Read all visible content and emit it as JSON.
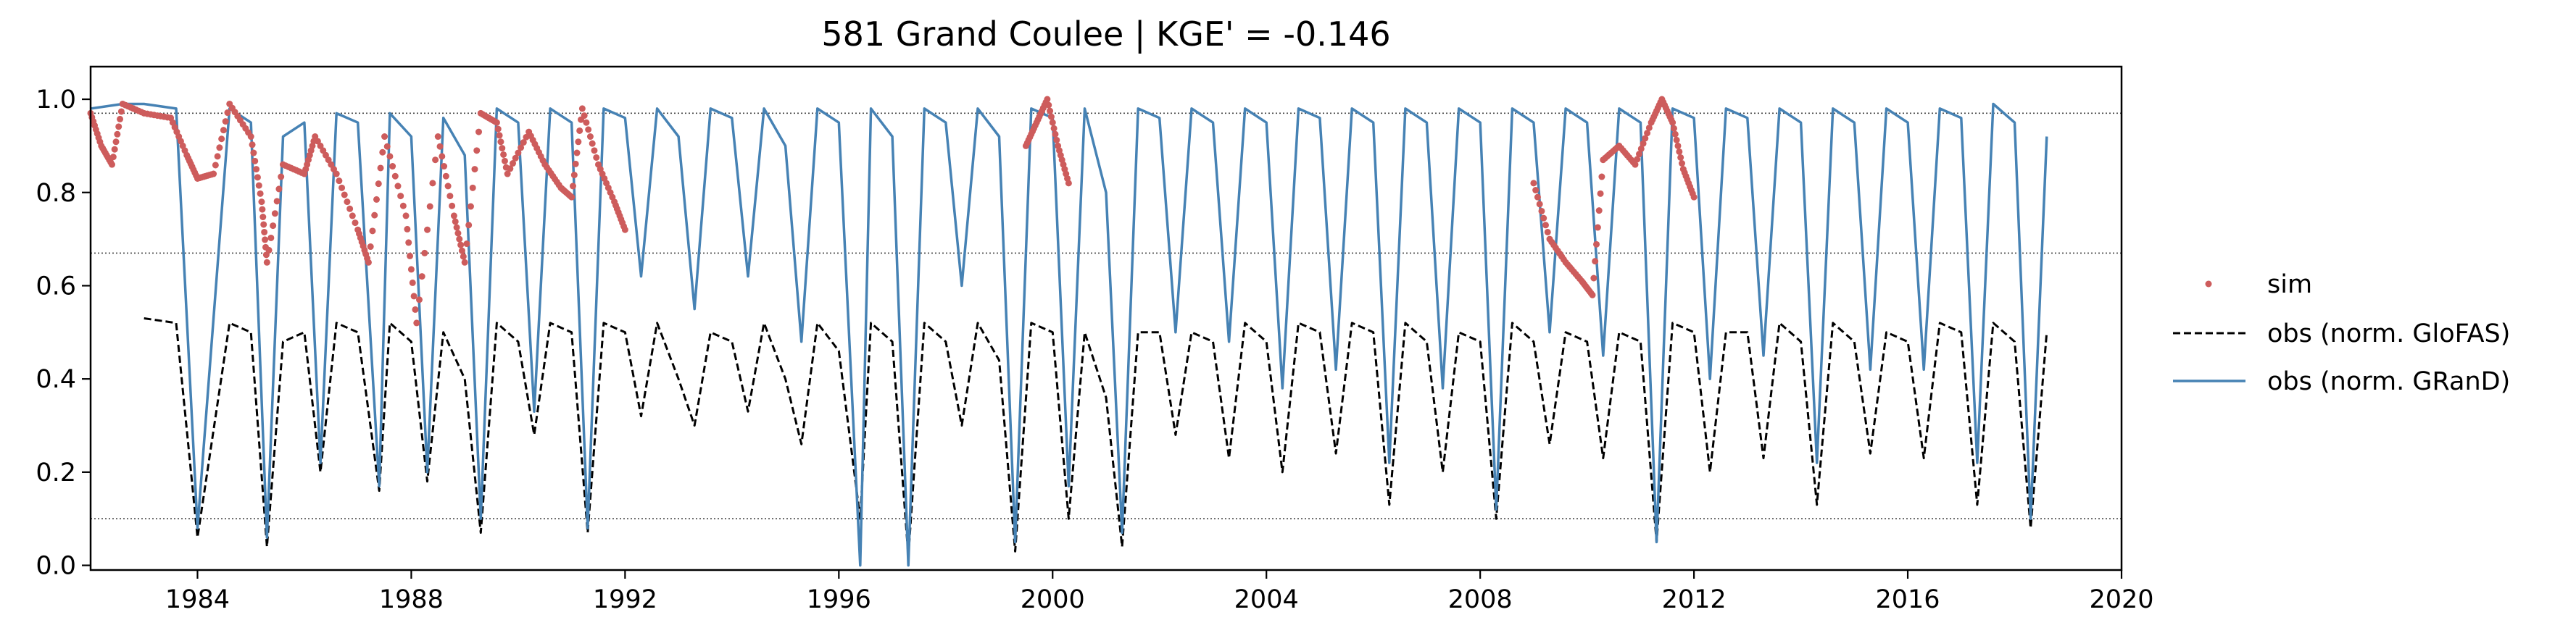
{
  "chart_data": {
    "type": "line",
    "title": "581  Grand Coulee | KGE' = -0.146",
    "xlabel": "",
    "ylabel": "",
    "xlim": [
      1982.0,
      2020.0
    ],
    "ylim": [
      -0.01,
      1.07
    ],
    "x_ticks": [
      1984,
      1988,
      1992,
      1996,
      2000,
      2004,
      2008,
      2012,
      2016,
      2020
    ],
    "x_tick_labels": [
      "1984",
      "1988",
      "1992",
      "1996",
      "2000",
      "2004",
      "2008",
      "2012",
      "2016",
      "2020"
    ],
    "y_ticks": [
      0.0,
      0.2,
      0.4,
      0.6,
      0.8,
      1.0
    ],
    "y_tick_labels": [
      "0.0",
      "0.2",
      "0.4",
      "0.6",
      "0.8",
      "1.0"
    ],
    "reference_lines": [
      0.1,
      0.67,
      0.97
    ],
    "legend": {
      "placement": "right, outside",
      "entries": [
        "sim",
        "obs (norm. GloFAS)",
        "obs (norm. GRanD)"
      ]
    },
    "series": [
      {
        "name": "sim",
        "style": "points",
        "color": "#cd5c5c",
        "segments": [
          [
            [
              1982.0,
              0.97
            ],
            [
              1982.2,
              0.9
            ],
            [
              1982.4,
              0.86
            ],
            [
              1982.6,
              0.99
            ],
            [
              1983.0,
              0.97
            ],
            [
              1983.5,
              0.96
            ],
            [
              1983.8,
              0.88
            ],
            [
              1984.0,
              0.83
            ],
            [
              1984.3,
              0.84
            ],
            [
              1984.6,
              0.99
            ],
            [
              1985.0,
              0.92
            ],
            [
              1985.2,
              0.78
            ],
            [
              1985.3,
              0.65
            ],
            [
              1985.6,
              0.86
            ],
            [
              1986.0,
              0.84
            ],
            [
              1986.2,
              0.92
            ],
            [
              1986.6,
              0.84
            ],
            [
              1987.0,
              0.72
            ],
            [
              1987.2,
              0.65
            ],
            [
              1987.5,
              0.92
            ],
            [
              1987.9,
              0.75
            ],
            [
              1988.1,
              0.52
            ],
            [
              1988.5,
              0.92
            ],
            [
              1988.8,
              0.75
            ],
            [
              1989.0,
              0.65
            ],
            [
              1989.3,
              0.97
            ],
            [
              1989.6,
              0.95
            ],
            [
              1989.8,
              0.84
            ],
            [
              1990.2,
              0.93
            ],
            [
              1990.5,
              0.86
            ],
            [
              1990.8,
              0.81
            ],
            [
              1991.0,
              0.79
            ],
            [
              1991.2,
              0.98
            ],
            [
              1991.5,
              0.86
            ],
            [
              1991.8,
              0.78
            ],
            [
              1992.0,
              0.72
            ]
          ],
          [
            [
              1999.5,
              0.9
            ],
            [
              1999.7,
              0.95
            ],
            [
              1999.9,
              1.0
            ],
            [
              2000.1,
              0.9
            ],
            [
              2000.3,
              0.82
            ]
          ],
          [
            [
              2009.0,
              0.82
            ],
            [
              2009.3,
              0.7
            ],
            [
              2009.6,
              0.65
            ],
            [
              2009.9,
              0.61
            ],
            [
              2010.1,
              0.58
            ],
            [
              2010.3,
              0.87
            ],
            [
              2010.6,
              0.9
            ],
            [
              2010.9,
              0.86
            ],
            [
              2011.2,
              0.95
            ],
            [
              2011.4,
              1.0
            ],
            [
              2011.6,
              0.95
            ],
            [
              2011.8,
              0.85
            ],
            [
              2012.0,
              0.79
            ]
          ]
        ]
      },
      {
        "name": "obs (norm. GloFAS)",
        "style": "dashed",
        "color": "#000000",
        "x": [
          1983.0,
          1983.6,
          1984.0,
          1984.6,
          1985.0,
          1985.3,
          1985.6,
          1986.0,
          1986.3,
          1986.6,
          1987.0,
          1987.4,
          1987.6,
          1988.0,
          1988.3,
          1988.6,
          1989.0,
          1989.3,
          1989.6,
          1990.0,
          1990.3,
          1990.6,
          1991.0,
          1991.3,
          1991.6,
          1992.0,
          1992.3,
          1992.6,
          1993.0,
          1993.3,
          1993.6,
          1994.0,
          1994.3,
          1994.6,
          1995.0,
          1995.3,
          1995.6,
          1996.0,
          1996.4,
          1996.6,
          1997.0,
          1997.3,
          1997.6,
          1998.0,
          1998.3,
          1998.6,
          1999.0,
          1999.3,
          1999.6,
          2000.0,
          2000.3,
          2000.6,
          2001.0,
          2001.3,
          2001.6,
          2002.0,
          2002.3,
          2002.6,
          2003.0,
          2003.3,
          2003.6,
          2004.0,
          2004.3,
          2004.6,
          2005.0,
          2005.3,
          2005.6,
          2006.0,
          2006.3,
          2006.6,
          2007.0,
          2007.3,
          2007.6,
          2008.0,
          2008.3,
          2008.6,
          2009.0,
          2009.3,
          2009.6,
          2010.0,
          2010.3,
          2010.6,
          2011.0,
          2011.3,
          2011.6,
          2012.0,
          2012.3,
          2012.6,
          2013.0,
          2013.3,
          2013.6,
          2014.0,
          2014.3,
          2014.6,
          2015.0,
          2015.3,
          2015.6,
          2016.0,
          2016.3,
          2016.6,
          2017.0,
          2017.3,
          2017.6,
          2018.0,
          2018.3,
          2018.6
        ],
        "y": [
          0.53,
          0.52,
          0.06,
          0.52,
          0.5,
          0.04,
          0.48,
          0.5,
          0.2,
          0.52,
          0.5,
          0.16,
          0.52,
          0.48,
          0.18,
          0.5,
          0.4,
          0.07,
          0.52,
          0.48,
          0.28,
          0.52,
          0.5,
          0.07,
          0.52,
          0.5,
          0.32,
          0.52,
          0.4,
          0.3,
          0.5,
          0.48,
          0.33,
          0.52,
          0.4,
          0.26,
          0.52,
          0.46,
          0.1,
          0.52,
          0.48,
          0.02,
          0.52,
          0.48,
          0.3,
          0.52,
          0.44,
          0.03,
          0.52,
          0.5,
          0.1,
          0.5,
          0.36,
          0.04,
          0.5,
          0.5,
          0.28,
          0.5,
          0.48,
          0.23,
          0.52,
          0.48,
          0.2,
          0.52,
          0.5,
          0.24,
          0.52,
          0.5,
          0.13,
          0.52,
          0.48,
          0.2,
          0.5,
          0.48,
          0.1,
          0.52,
          0.48,
          0.26,
          0.5,
          0.48,
          0.23,
          0.5,
          0.48,
          0.05,
          0.52,
          0.5,
          0.2,
          0.5,
          0.5,
          0.23,
          0.52,
          0.48,
          0.13,
          0.52,
          0.48,
          0.24,
          0.5,
          0.48,
          0.23,
          0.52,
          0.5,
          0.13,
          0.52,
          0.48,
          0.08,
          0.5
        ]
      },
      {
        "name": "obs (norm. GRanD)",
        "style": "solid",
        "color": "#4682b4",
        "x": [
          1982.0,
          1982.6,
          1983.0,
          1983.6,
          1984.0,
          1984.6,
          1985.0,
          1985.3,
          1985.6,
          1986.0,
          1986.3,
          1986.6,
          1987.0,
          1987.4,
          1987.6,
          1988.0,
          1988.3,
          1988.6,
          1989.0,
          1989.3,
          1989.6,
          1990.0,
          1990.3,
          1990.6,
          1991.0,
          1991.3,
          1991.6,
          1992.0,
          1992.3,
          1992.6,
          1993.0,
          1993.3,
          1993.6,
          1994.0,
          1994.3,
          1994.6,
          1995.0,
          1995.3,
          1995.6,
          1996.0,
          1996.4,
          1996.6,
          1997.0,
          1997.3,
          1997.6,
          1998.0,
          1998.3,
          1998.6,
          1999.0,
          1999.3,
          1999.6,
          2000.0,
          2000.3,
          2000.6,
          2001.0,
          2001.3,
          2001.6,
          2002.0,
          2002.3,
          2002.6,
          2003.0,
          2003.3,
          2003.6,
          2004.0,
          2004.3,
          2004.6,
          2005.0,
          2005.3,
          2005.6,
          2006.0,
          2006.3,
          2006.6,
          2007.0,
          2007.3,
          2007.6,
          2008.0,
          2008.3,
          2008.6,
          2009.0,
          2009.3,
          2009.6,
          2010.0,
          2010.3,
          2010.6,
          2011.0,
          2011.3,
          2011.6,
          2012.0,
          2012.3,
          2012.6,
          2013.0,
          2013.3,
          2013.6,
          2014.0,
          2014.3,
          2014.6,
          2015.0,
          2015.3,
          2015.6,
          2016.0,
          2016.3,
          2016.6,
          2017.0,
          2017.3,
          2017.6,
          2018.0,
          2018.3,
          2018.6
        ],
        "y": [
          0.98,
          0.99,
          0.99,
          0.98,
          0.08,
          0.98,
          0.95,
          0.06,
          0.92,
          0.95,
          0.22,
          0.97,
          0.95,
          0.17,
          0.97,
          0.92,
          0.2,
          0.96,
          0.88,
          0.1,
          0.98,
          0.95,
          0.33,
          0.98,
          0.95,
          0.08,
          0.98,
          0.96,
          0.62,
          0.98,
          0.92,
          0.55,
          0.98,
          0.96,
          0.62,
          0.98,
          0.9,
          0.48,
          0.98,
          0.95,
          0.0,
          0.98,
          0.92,
          0.0,
          0.98,
          0.95,
          0.6,
          0.98,
          0.92,
          0.05,
          0.98,
          0.96,
          0.17,
          0.98,
          0.8,
          0.07,
          0.98,
          0.96,
          0.5,
          0.98,
          0.95,
          0.48,
          0.98,
          0.95,
          0.38,
          0.98,
          0.96,
          0.42,
          0.98,
          0.95,
          0.22,
          0.98,
          0.95,
          0.38,
          0.98,
          0.95,
          0.12,
          0.98,
          0.95,
          0.5,
          0.98,
          0.95,
          0.45,
          0.98,
          0.95,
          0.05,
          0.98,
          0.96,
          0.4,
          0.98,
          0.96,
          0.45,
          0.98,
          0.95,
          0.22,
          0.98,
          0.95,
          0.42,
          0.98,
          0.95,
          0.42,
          0.98,
          0.96,
          0.22,
          0.99,
          0.95,
          0.1,
          0.92
        ]
      }
    ]
  }
}
